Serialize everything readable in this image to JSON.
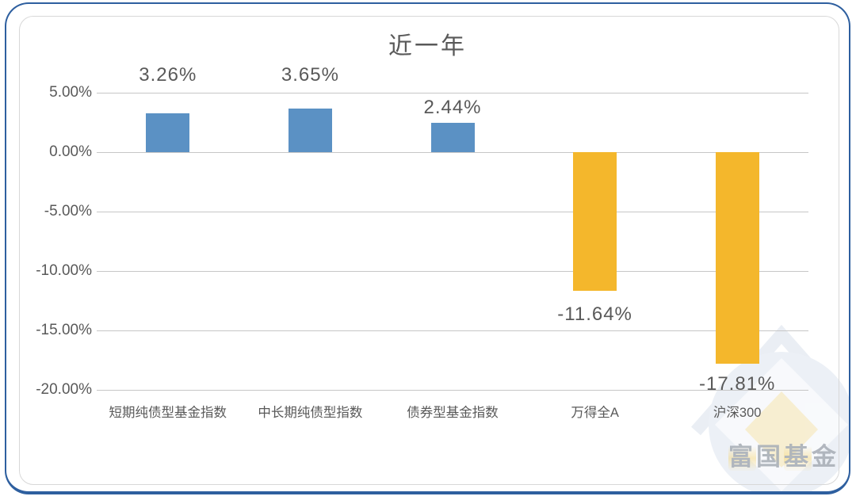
{
  "chart_data": {
    "type": "bar",
    "title": "近一年",
    "categories": [
      "短期纯债型基金指数",
      "中长期纯债型指数",
      "债券型基金指数",
      "万得全A",
      "沪深300"
    ],
    "values": [
      3.26,
      3.65,
      2.44,
      -11.64,
      -17.81
    ],
    "value_labels": [
      "3.26%",
      "3.65%",
      "2.44%",
      "-11.64%",
      "-17.81%"
    ],
    "bar_colors": [
      "#5b91c4",
      "#5b91c4",
      "#5b91c4",
      "#f4b72c",
      "#f4b72c"
    ],
    "positive_color": "#5b91c4",
    "negative_color": "#f4b72c",
    "xlabel": "",
    "ylabel": "",
    "ylim": [
      -20,
      5
    ],
    "yticks": [
      5,
      0,
      -5,
      -10,
      -15,
      -20
    ],
    "ytick_labels": [
      "5.00%",
      "0.00%",
      "-5.00%",
      "-10.00%",
      "-15.00%",
      "-20.00%"
    ],
    "grid": true,
    "legend": "none"
  },
  "colors": {
    "outer_border": "#2e5f9f",
    "inner_border": "#d8d8d8",
    "gridline": "#c6c6c6",
    "text": "#595959"
  },
  "watermark": {
    "text": "富国基金"
  }
}
